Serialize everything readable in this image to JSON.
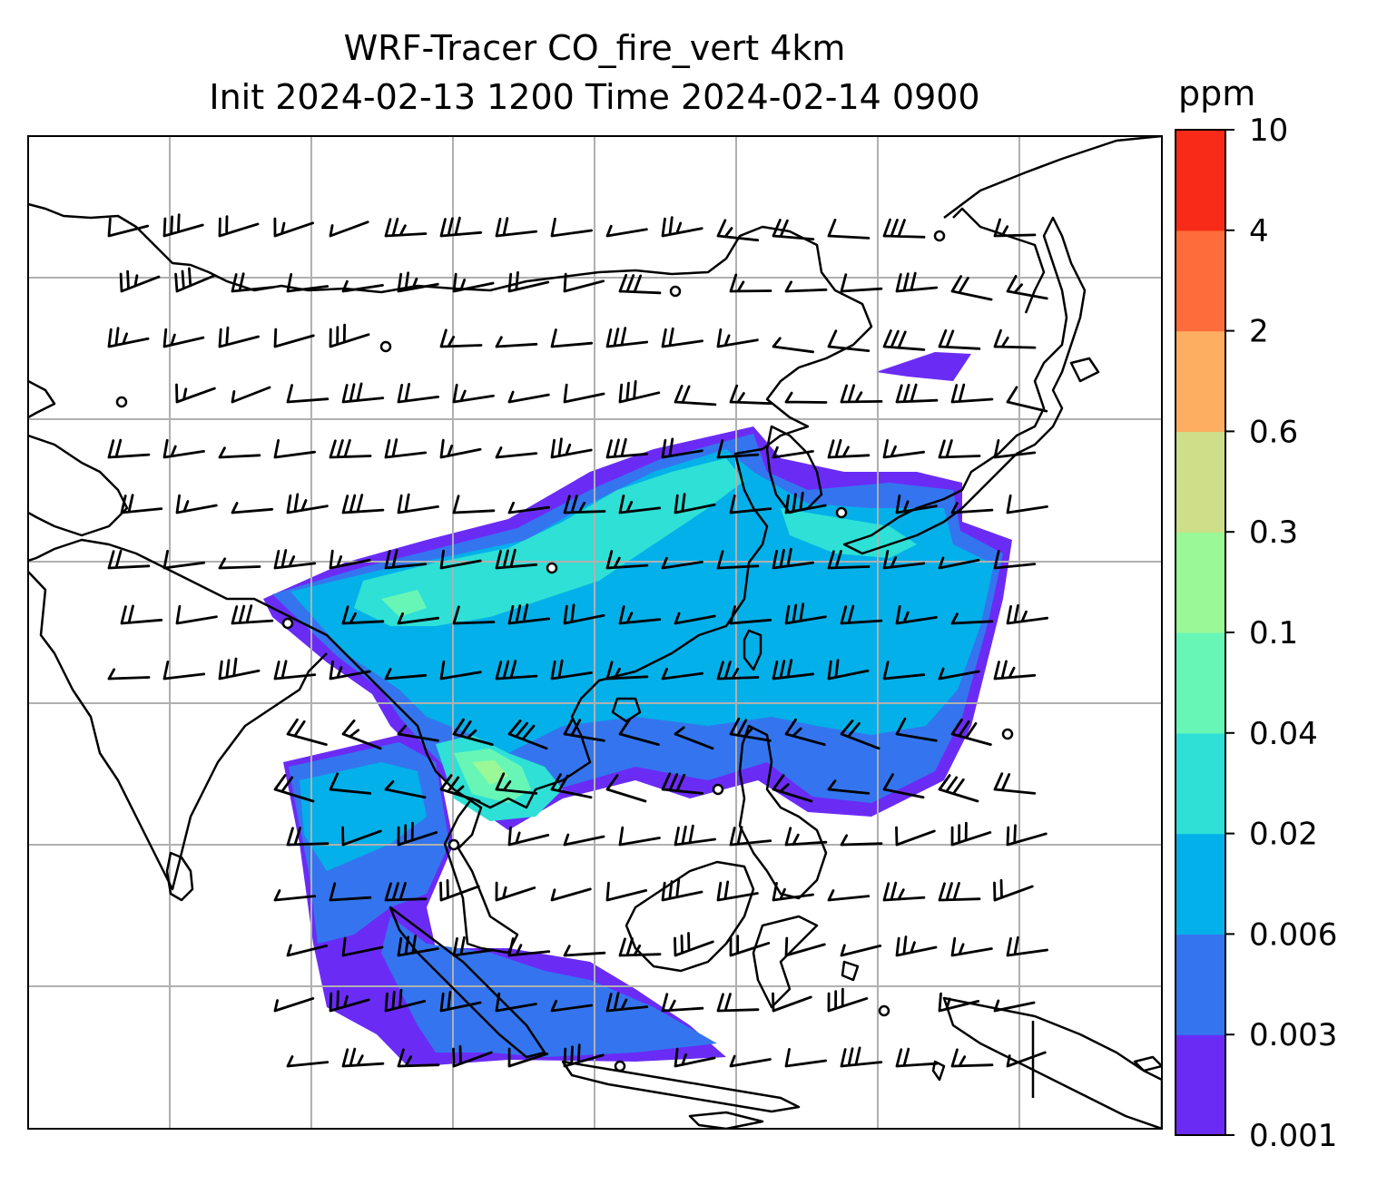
{
  "title": {
    "line1": "WRF-Tracer CO_fire_vert 4km",
    "line2": "Init 2024-02-13 1200 Time 2024-02-14 0900"
  },
  "colorbar": {
    "unit": "ppm",
    "levels": [
      "0.001",
      "0.003",
      "0.006",
      "0.02",
      "0.04",
      "0.1",
      "0.3",
      "0.6",
      "2",
      "4",
      "10"
    ],
    "colors": [
      "#6a2cf5",
      "#3475ef",
      "#04b0e9",
      "#2ee0d6",
      "#68f6b6",
      "#9af896",
      "#cfde88",
      "#fdae60",
      "#fd6d3b",
      "#f72b17"
    ]
  },
  "map": {
    "land_outline_color": "#000000",
    "gridline_color": "#b0b0b0",
    "wind_barb_color": "#000000",
    "wind_barbs": "shown",
    "calm_markers": "shown"
  }
}
